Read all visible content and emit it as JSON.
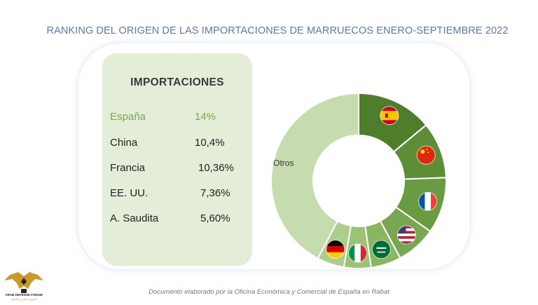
{
  "title": "RANKING DEL ORIGEN DE LAS IMPORTACIONES DE MARRUECOS ENERO-SEPTIEMBRE 2022",
  "panel": {
    "heading": "IMPORTACIONES",
    "rows": [
      {
        "country": "España",
        "value": "14%"
      },
      {
        "country": "China",
        "value": "10,4%"
      },
      {
        "country": "Francia",
        "value": "10,36%"
      },
      {
        "country": "EE. UU.",
        "value": "7,36%"
      },
      {
        "country": "A. Saudita",
        "value": "5,60%"
      }
    ]
  },
  "chart_data": {
    "type": "pie",
    "variant": "donut",
    "labels": [
      "Otros"
    ],
    "segments": [
      {
        "flag": "spain-flag",
        "value": 14,
        "color": "#4f7d2c"
      },
      {
        "flag": "china-flag",
        "value": 10.4,
        "color": "#5d8d36"
      },
      {
        "flag": "france-flag",
        "value": 10.36,
        "color": "#6a9a42"
      },
      {
        "flag": "usa-flag",
        "value": 7.36,
        "color": "#79a751"
      },
      {
        "flag": "saudi-arabia-flag",
        "value": 5.6,
        "color": "#8ab563"
      },
      {
        "flag": "italy-flag",
        "value": 5.0,
        "color": "#9cc277"
      },
      {
        "flag": "germany-flag",
        "value": 5.0,
        "color": "#adcd8c"
      },
      {
        "label": "Otros",
        "value": 42.28,
        "color": "#c6dcae"
      }
    ]
  },
  "footer": "Documento elaborado por la Oficina Económica y Comercial de España en Rabat",
  "logo": {
    "line1": "ARAB DEFENSE FORUM",
    "line2": "المنتدى العربي للدفاع"
  }
}
